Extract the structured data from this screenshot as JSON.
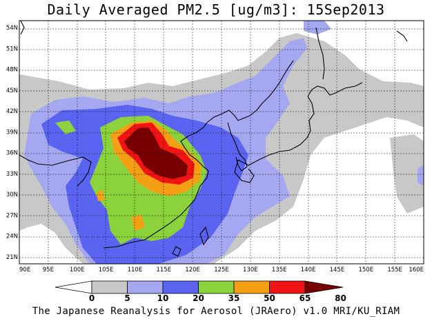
{
  "title": "Daily Averaged PM2.5 [ug/m3]: 15Sep2013",
  "footer": "The Japanese Reanalysis for Aerosol (JRAero) v1.0 MRI/KU_RIAM",
  "chart_data": {
    "type": "heatmap",
    "x_ticks": [
      "90E",
      "95E",
      "100E",
      "105E",
      "110E",
      "115E",
      "120E",
      "125E",
      "130E",
      "135E",
      "140E",
      "145E",
      "150E",
      "155E",
      "160E"
    ],
    "y_ticks": [
      "21N",
      "24N",
      "27N",
      "30N",
      "33N",
      "36N",
      "39N",
      "42N",
      "45N",
      "48N",
      "51N",
      "54N"
    ],
    "xlim": [
      90,
      160
    ],
    "ylim": [
      20,
      55
    ],
    "grid": true,
    "colorbar_labels": [
      "0",
      "5",
      "10",
      "20",
      "35",
      "50",
      "65",
      "80"
    ],
    "colorbar_colors": [
      "#ffffff",
      "#c8c8c8",
      "#a5a8f0",
      "#5a64f0",
      "#8cd23c",
      "#f5a014",
      "#f01414",
      "#780000"
    ]
  }
}
